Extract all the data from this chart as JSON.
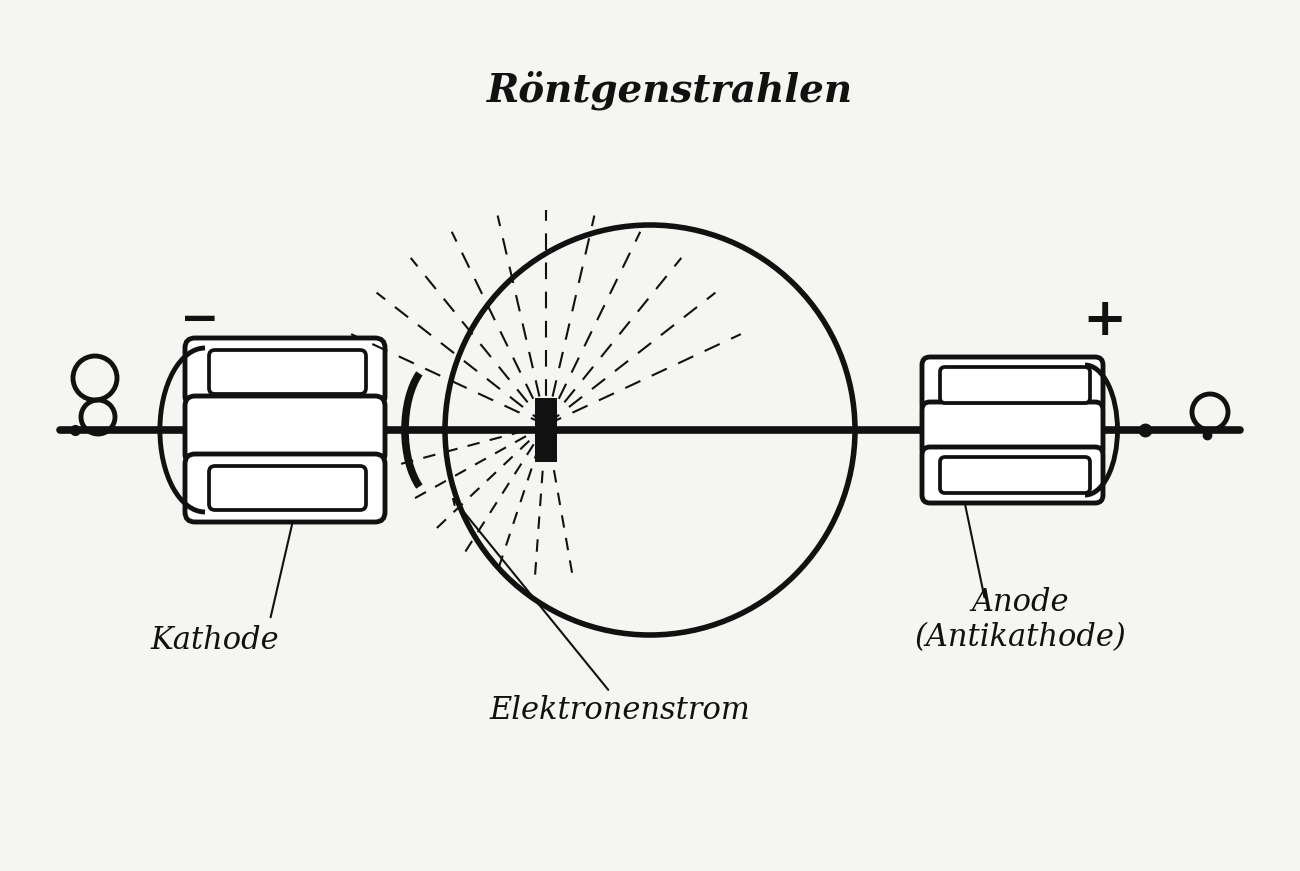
{
  "background_color": "#f5f5f2",
  "line_color": "#111111",
  "text_color": "#111111",
  "labels": {
    "roentgen": "Röntgenstrahlen",
    "kathode": "Kathode",
    "anode": "Anode\n(Antikathode)",
    "elektronenstrom": "Elektronenstrom",
    "minus": "−",
    "plus": "+"
  },
  "figsize": [
    13.0,
    8.71
  ],
  "dpi": 100
}
